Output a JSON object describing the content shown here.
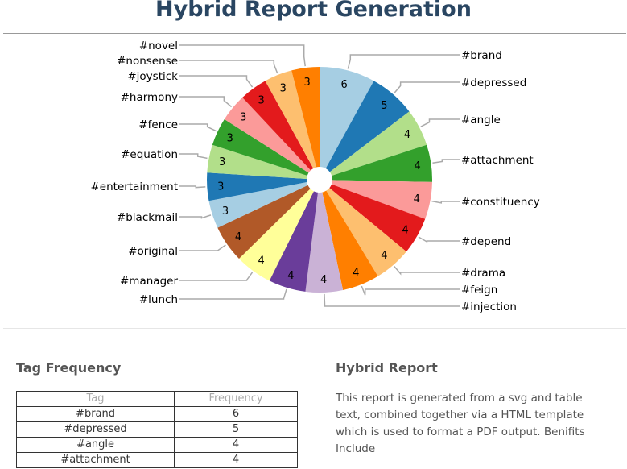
{
  "title": "Hybrid Report Generation",
  "chart_data": {
    "type": "pie",
    "donut": true,
    "categories": [
      "#brand",
      "#depressed",
      "#angle",
      "#attachment",
      "#constituency",
      "#depend",
      "#drama",
      "#feign",
      "#injection",
      "#lunch",
      "#manager",
      "#original",
      "#blackmail",
      "#entertainment",
      "#equation",
      "#fence",
      "#harmony",
      "#joystick",
      "#nonsense",
      "#novel"
    ],
    "values": [
      6,
      5,
      4,
      4,
      4,
      4,
      4,
      4,
      4,
      4,
      4,
      4,
      3,
      3,
      3,
      3,
      3,
      3,
      3,
      3
    ],
    "colors": [
      "#a6cee3",
      "#1f78b4",
      "#b2df8a",
      "#33a02c",
      "#fb9a99",
      "#e31a1c",
      "#fdbf6f",
      "#ff7f00",
      "#cab2d6",
      "#6a3d9a",
      "#ffff99",
      "#b15928",
      "#a6cee3",
      "#1f78b4",
      "#b2df8a",
      "#33a02c",
      "#fb9a99",
      "#e31a1c",
      "#fdbf6f",
      "#ff7f00"
    ]
  },
  "table": {
    "heading": "Tag Frequency",
    "columns": [
      "Tag",
      "Frequency"
    ],
    "rows": [
      [
        "#brand",
        "6"
      ],
      [
        "#depressed",
        "5"
      ],
      [
        "#angle",
        "4"
      ],
      [
        "#attachment",
        "4"
      ]
    ]
  },
  "report": {
    "heading": "Hybrid Report",
    "text": "This report is generated from a svg and table text, combined together via a HTML template which is used to format a PDF output. Benifits Include"
  }
}
